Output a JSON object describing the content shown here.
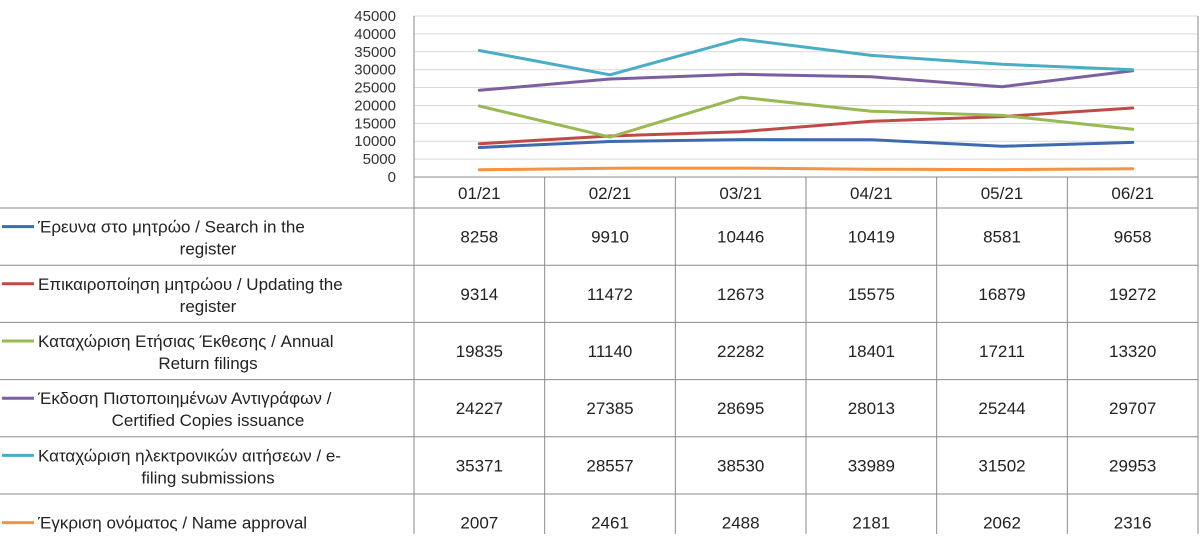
{
  "chart_data": {
    "type": "line",
    "title": "",
    "xlabel": "",
    "ylabel": "",
    "ylim": [
      0,
      45000
    ],
    "yticks": [
      0,
      5000,
      10000,
      15000,
      20000,
      25000,
      30000,
      35000,
      40000,
      45000
    ],
    "grid": true,
    "legend": "data-table",
    "categories": [
      "01/21",
      "02/21",
      "03/21",
      "04/21",
      "05/21",
      "06/21"
    ],
    "series": [
      {
        "name": "Έρευνα στο μητρώο / Search in the register",
        "label_lines": [
          "Έρευνα στο μητρώο / Search in the",
          "register"
        ],
        "color": "#3f6aab",
        "values": [
          8258,
          9910,
          10446,
          10419,
          8581,
          9658
        ]
      },
      {
        "name": "Επικαιροποίηση μητρώου / Updating the register",
        "label_lines": [
          "Επικαιροποίηση μητρώου / Updating the",
          "register"
        ],
        "color": "#be4b48",
        "values": [
          9314,
          11472,
          12673,
          15575,
          16879,
          19272
        ]
      },
      {
        "name": "Καταχώριση Ετήσιας Έκθεσης / Annual Return filings",
        "label_lines": [
          "Καταχώριση Ετήσιας Έκθεσης / Annual",
          "Return filings"
        ],
        "color": "#98b954",
        "values": [
          19835,
          11140,
          22282,
          18401,
          17211,
          13320
        ]
      },
      {
        "name": "Έκδοση Πιστοποιημένων Αντιγράφων / Certified Copies issuance",
        "label_lines": [
          "Έκδοση Πιστοποιημένων Αντιγράφων /",
          "Certified Copies issuance"
        ],
        "color": "#7d5fa0",
        "values": [
          24227,
          27385,
          28695,
          28013,
          25244,
          29707
        ]
      },
      {
        "name": "Καταχώριση ηλεκτρονικών αιτήσεων / e-filing submissions",
        "label_lines": [
          "Καταχώριση ηλεκτρονικών αιτήσεων / e-",
          "filing submissions"
        ],
        "color": "#4aacc5",
        "values": [
          35371,
          28557,
          38530,
          33989,
          31502,
          29953
        ]
      },
      {
        "name": "Έγκριση ονόματος / Name approval",
        "label_lines": [
          "Έγκριση ονόματος / Name approval"
        ],
        "color": "#f69240",
        "values": [
          2007,
          2461,
          2488,
          2181,
          2062,
          2316
        ]
      }
    ]
  }
}
